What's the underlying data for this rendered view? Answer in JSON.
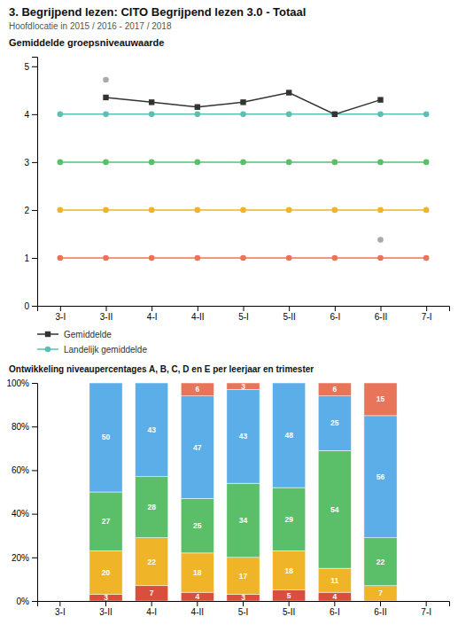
{
  "title": "3. Begrijpend lezen: CITO Begrijpend lezen 3.0 - Totaal",
  "subtitle": "Hoofdlocatie in 2015 / 2016 - 2017 / 2018",
  "chart_data": [
    {
      "type": "line",
      "title": "Gemiddelde groepsniveauwaarde",
      "categories": [
        "3-I",
        "3-II",
        "4-I",
        "4-II",
        "5-I",
        "5-II",
        "6-I",
        "6-II",
        "7-I"
      ],
      "series": [
        {
          "color": "#e8745a",
          "marker": "circle",
          "values": [
            1.0,
            1.0,
            1.0,
            1.0,
            1.0,
            1.0,
            1.0,
            1.0,
            1.0
          ]
        },
        {
          "color": "#f0b429",
          "marker": "circle",
          "values": [
            2.0,
            2.0,
            2.0,
            2.0,
            2.0,
            2.0,
            2.0,
            2.0,
            2.0
          ]
        },
        {
          "color": "#5bbf6a",
          "marker": "circle",
          "values": [
            3.0,
            3.0,
            3.0,
            3.0,
            3.0,
            3.0,
            3.0,
            3.0,
            3.0
          ]
        },
        {
          "name": "Landelijk gemiddelde",
          "color": "#5bbfb5",
          "marker": "circle",
          "values": [
            4.0,
            4.0,
            4.0,
            4.0,
            4.0,
            4.0,
            4.0,
            4.0,
            4.0
          ]
        },
        {
          "name": "Gemiddelde",
          "color": "#333333",
          "marker": "square",
          "values": [
            null,
            4.35,
            4.25,
            4.15,
            4.25,
            4.45,
            4.0,
            4.3,
            null
          ]
        },
        {
          "type": "scatter",
          "color": "#aaaaaa",
          "marker": "circle",
          "values": [
            null,
            4.72,
            null,
            null,
            null,
            null,
            null,
            1.38,
            null
          ]
        }
      ],
      "ylim": [
        0,
        5.2
      ],
      "yticks": [
        0,
        1,
        2,
        3,
        4,
        5
      ],
      "grid": false,
      "legend": "bottom"
    },
    {
      "type": "bar",
      "stacked": true,
      "title": "Ontwikkeling niveaupercentages A, B, C, D en E per leerjaar en trimester",
      "categories": [
        "3-I",
        "3-II",
        "4-I",
        "4-II",
        "5-I",
        "5-II",
        "6-I",
        "6-II",
        "7-I"
      ],
      "series": [
        {
          "color": "#d94f3d",
          "values": [
            0,
            3,
            7,
            4,
            3,
            5,
            4,
            0,
            0
          ]
        },
        {
          "color": "#f0b429",
          "values": [
            0,
            20,
            22,
            18,
            17,
            18,
            11,
            7,
            0
          ]
        },
        {
          "color": "#5bbf6a",
          "values": [
            0,
            27,
            28,
            25,
            34,
            29,
            54,
            22,
            0
          ]
        },
        {
          "color": "#5baee8",
          "values": [
            0,
            50,
            43,
            47,
            43,
            48,
            25,
            56,
            0
          ]
        },
        {
          "color": "#e8745a",
          "values": [
            0,
            0,
            0,
            6,
            3,
            0,
            6,
            15,
            0
          ]
        }
      ],
      "ylim": [
        0,
        100
      ],
      "yticks": [
        {
          "value": 0,
          "label": "0%"
        },
        {
          "value": 20,
          "label": "20%"
        },
        {
          "value": 40,
          "label": "40%"
        },
        {
          "value": 60,
          "label": "60%"
        },
        {
          "value": 80,
          "label": "80%"
        },
        {
          "value": 100,
          "label": "100%"
        }
      ],
      "grid": false,
      "data_labels": true
    }
  ]
}
